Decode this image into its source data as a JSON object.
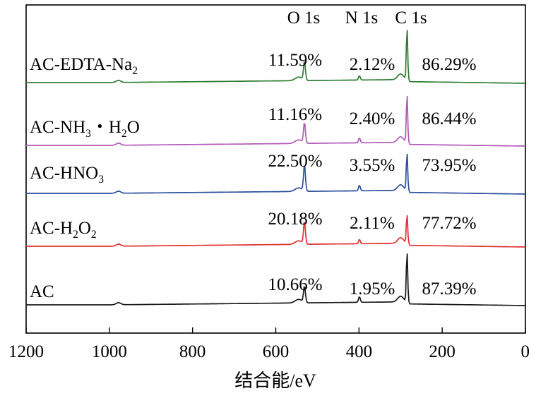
{
  "chart_data": {
    "type": "line",
    "xlabel": "结合能/eV",
    "xlim": [
      1200,
      0
    ],
    "x_reversed": true,
    "x_ticks": [
      "1200",
      "1000",
      "800",
      "600",
      "400",
      "200",
      "0"
    ],
    "peak_labels": [
      "O 1s",
      "N 1s",
      "C 1s"
    ],
    "peak_positions_eV": [
      531,
      399,
      284.6
    ],
    "series": [
      {
        "name": "AC-EDTA-Na₂",
        "color": "#2e7d32",
        "O_1s": "11.59%",
        "N_1s": "2.12%",
        "C_1s": "86.29%"
      },
      {
        "name": "AC-NH₃・H₂O",
        "color": "#b259b7",
        "O_1s": "11.16%",
        "N_1s": "2.40%",
        "C_1s": "86.44%"
      },
      {
        "name": "AC-HNO₃",
        "color": "#2c4f9e",
        "O_1s": "22.50%",
        "N_1s": "3.55%",
        "C_1s": "73.95%"
      },
      {
        "name": "AC-H₂O₂",
        "color": "#e03131",
        "O_1s": "20.18%",
        "N_1s": "2.11%",
        "C_1s": "77.72%"
      },
      {
        "name": "AC",
        "color": "#1a1a1a",
        "O_1s": "10.66%",
        "N_1s": "1.95%",
        "C_1s": "87.39%"
      }
    ]
  }
}
